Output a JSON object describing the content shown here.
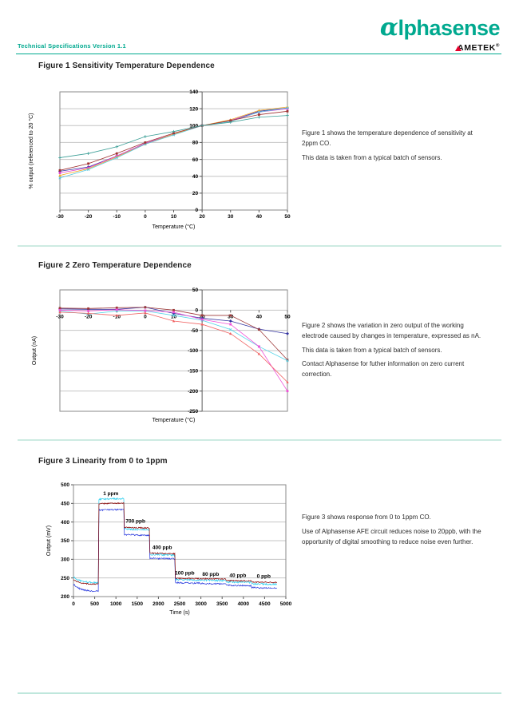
{
  "header": {
    "doc_ref": "Technical Specifications Version 1.1",
    "logo_alpha": "α",
    "logo_rest": "lphasense",
    "sub_brand": "AMETEK",
    "registered": "®",
    "brand_color": "#00A98F",
    "accent_red": "#E4002B"
  },
  "sections": [
    {
      "title": "Figure 1 Sensitivity Temperature Dependence",
      "notes": [
        "Figure 1 shows the temperature dependence of sensitivity at 2ppm CO.",
        "This data is taken from a typical batch of sensors."
      ]
    },
    {
      "title": "Figure 2 Zero Temperature Dependence",
      "notes": [
        "Figure 2 shows the variation in zero output of the working electrode caused by changes in temperature, expressed as nA.",
        "This data is taken from a typical batch of sensors.",
        "Contact Alphasense for futher information on zero current correction."
      ]
    },
    {
      "title": "Figure 3 Linearity from 0 to 1ppm",
      "notes": [
        "Figure 3 shows response from 0 to 1ppm CO.",
        "Use of Alphasense AFE circuit reduces noise to 20ppb, with the opportunity of digital smoothing to reduce noise even further."
      ]
    }
  ],
  "chart_data": [
    {
      "type": "line",
      "title": "",
      "xlabel": "Temperature (°C)",
      "ylabel": "% output  (referenced to 20 °C)",
      "x": [
        -30,
        -20,
        -10,
        0,
        10,
        20,
        30,
        40,
        50
      ],
      "xlim": [
        -30,
        50
      ],
      "ylim": [
        0,
        140
      ],
      "yticks": [
        0,
        20,
        40,
        60,
        80,
        100,
        120,
        140
      ],
      "value_axis_at": 20,
      "x_label_mode": "below",
      "grid": "horizontal",
      "legend": "none",
      "series": [
        {
          "name": "sensor-1",
          "color": "#3333A0",
          "marker": "diamond",
          "values": [
            46,
            51,
            64,
            79,
            90,
            100,
            106,
            117,
            121
          ]
        },
        {
          "name": "sensor-2",
          "color": "#E040D0",
          "marker": "square",
          "values": [
            44,
            50,
            64,
            79,
            90,
            100,
            106,
            116,
            120
          ]
        },
        {
          "name": "sensor-3",
          "color": "#F5A623",
          "marker": "triangle",
          "values": [
            41,
            49,
            63,
            78,
            90,
            100,
            107,
            118,
            122
          ]
        },
        {
          "name": "sensor-4",
          "color": "#58C8E0",
          "marker": "x",
          "values": [
            38,
            48,
            62,
            78,
            89,
            100,
            105,
            116,
            121
          ]
        },
        {
          "name": "sensor-5",
          "color": "#A03030",
          "marker": "square",
          "values": [
            47,
            55,
            67,
            80,
            91,
            100,
            106,
            113,
            117
          ]
        },
        {
          "name": "sensor-6",
          "color": "#3A9E96",
          "marker": "plus",
          "values": [
            62,
            67,
            75,
            87,
            93,
            100,
            104,
            110,
            112
          ]
        }
      ]
    },
    {
      "type": "line",
      "title": "",
      "xlabel": "Temperature (°C)",
      "ylabel": "Output (nA)",
      "x": [
        -30,
        -20,
        -10,
        0,
        10,
        20,
        30,
        40,
        50
      ],
      "xlim": [
        -30,
        50
      ],
      "ylim": [
        -250,
        50
      ],
      "yticks": [
        50,
        0,
        -50,
        -100,
        -150,
        -200,
        -250
      ],
      "value_axis_at": 20,
      "x_label_mode": "zero",
      "grid": "horizontal",
      "legend": "none",
      "series": [
        {
          "name": "sensor-1",
          "color": "#3333A0",
          "marker": "diamond",
          "values": [
            3,
            2,
            2,
            7,
            -8,
            -20,
            -27,
            -47,
            -58
          ]
        },
        {
          "name": "sensor-2",
          "color": "#9E3A3A",
          "marker": "square",
          "values": [
            5,
            4,
            6,
            7,
            0,
            -13,
            -13,
            -48,
            -123
          ]
        },
        {
          "name": "sensor-3",
          "color": "#55D5E8",
          "marker": "x",
          "values": [
            -2,
            -10,
            -2,
            -2,
            -13,
            -25,
            -48,
            -90,
            -125
          ]
        },
        {
          "name": "sensor-4",
          "color": "#F050D8",
          "marker": "square",
          "values": [
            0,
            -2,
            1,
            -1,
            -5,
            -23,
            -35,
            -90,
            -200
          ]
        },
        {
          "name": "sensor-5",
          "color": "#F06060",
          "marker": "triangle",
          "values": [
            -5,
            -8,
            -13,
            -7,
            -27,
            -35,
            -58,
            -108,
            -178
          ]
        }
      ]
    },
    {
      "type": "line-noisy",
      "title": "",
      "xlabel": "Time (s)",
      "ylabel": "Output (mV)",
      "xlim": [
        0,
        5000
      ],
      "xticks": [
        0,
        500,
        1000,
        1500,
        2000,
        2500,
        3000,
        3500,
        4000,
        4500,
        5000
      ],
      "ylim": [
        200,
        500
      ],
      "yticks": [
        200,
        250,
        300,
        350,
        400,
        450,
        500
      ],
      "grid": "horizontal",
      "legend": "none",
      "phases": [
        {
          "t0": 0,
          "t1": 585,
          "decay": true
        },
        {
          "t0": 600,
          "t1": 1185,
          "decay": false
        },
        {
          "t0": 1200,
          "t1": 1785,
          "decay": false
        },
        {
          "t0": 1800,
          "t1": 2385,
          "decay": false
        },
        {
          "t0": 2400,
          "t1": 2985,
          "decay": false
        },
        {
          "t0": 3000,
          "t1": 3585,
          "decay": false
        },
        {
          "t0": 3600,
          "t1": 4185,
          "decay": false
        },
        {
          "t0": 4200,
          "t1": 4790,
          "decay": false
        }
      ],
      "traces": [
        {
          "name": "sensor-cyan",
          "color": "#22CCEE",
          "noise": 2.3,
          "levels": [
            [
              253,
              237
            ],
            [
              461,
              463
            ],
            [
              381,
              379
            ],
            [
              313,
              311
            ],
            [
              246,
              244
            ],
            [
              244,
              243
            ],
            [
              239,
              238
            ],
            [
              234,
              233
            ]
          ]
        },
        {
          "name": "sensor-blue",
          "color": "#2233DD",
          "noise": 2.0,
          "levels": [
            [
              234,
              214
            ],
            [
              432,
              434
            ],
            [
              366,
              364
            ],
            [
              303,
              301
            ],
            [
              237,
              236
            ],
            [
              235,
              234
            ],
            [
              230,
              229
            ],
            [
              224,
              223
            ]
          ]
        },
        {
          "name": "sensor-dark-red",
          "color": "#8B0000",
          "noise": 1.6,
          "levels": [
            [
              246,
              233
            ],
            [
              449,
              451
            ],
            [
              386,
              384
            ],
            [
              317,
              315
            ],
            [
              249,
              248
            ],
            [
              248,
              247
            ],
            [
              243,
              242
            ],
            [
              239,
              238
            ]
          ]
        }
      ],
      "annotations": [
        {
          "text": "1 ppm",
          "x": 880,
          "y": 472
        },
        {
          "text": "700 ppb",
          "x": 1460,
          "y": 398
        },
        {
          "text": "400 ppb",
          "x": 2090,
          "y": 328
        },
        {
          "text": "100 ppb",
          "x": 2620,
          "y": 259
        },
        {
          "text": "80 ppb",
          "x": 3230,
          "y": 256
        },
        {
          "text": "40 ppb",
          "x": 3870,
          "y": 252
        },
        {
          "text": "0 ppb",
          "x": 4480,
          "y": 250
        }
      ]
    }
  ]
}
